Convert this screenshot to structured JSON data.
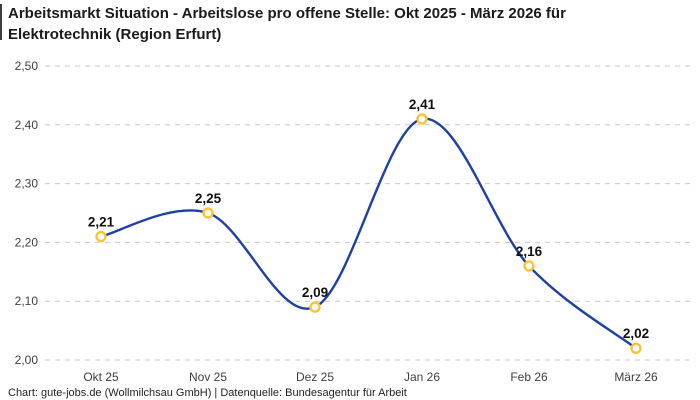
{
  "title": "Arbeitsmarkt Situation - Arbeitslose pro offene Stelle: Okt 2025 - März 2026 für Elektrotechnik (Region Erfurt)",
  "footer": "Chart: gute-jobs.de (Wollmilchsau GmbH) | Datenquelle: Bundesagentur für Arbeit",
  "chart_data": {
    "type": "line",
    "title": "Arbeitsmarkt Situation - Arbeitslose pro offene Stelle: Okt 2025 - März 2026 für Elektrotechnik (Region Erfurt)",
    "categories": [
      "Okt 25",
      "Nov 25",
      "Dez 25",
      "Jan 26",
      "Feb 26",
      "März 26"
    ],
    "values": [
      2.21,
      2.25,
      2.09,
      2.41,
      2.16,
      2.02
    ],
    "point_labels": [
      "2,21",
      "2,25",
      "2,09",
      "2,41",
      "2,16",
      "2,02"
    ],
    "y_ticks": [
      {
        "value": 2.0,
        "label": "2,00"
      },
      {
        "value": 2.1,
        "label": "2,10"
      },
      {
        "value": 2.2,
        "label": "2,20"
      },
      {
        "value": 2.3,
        "label": "2,30"
      },
      {
        "value": 2.4,
        "label": "2,40"
      },
      {
        "value": 2.5,
        "label": "2,50"
      }
    ],
    "ylim": [
      2.0,
      2.5
    ],
    "xlabel": "",
    "ylabel": "",
    "grid": "horizontal-dashed",
    "legend": "none",
    "curve": "smooth",
    "colors": {
      "line": "#1e3fa6",
      "marker_ring": "#fcc434",
      "marker_fill": "#ffffff",
      "grid": "#c9c9c9",
      "tick_text": "#3f3f3f",
      "point_label_text": "#111111",
      "title_text": "#1a1a1a",
      "footer_text": "#1f1f1f"
    }
  }
}
